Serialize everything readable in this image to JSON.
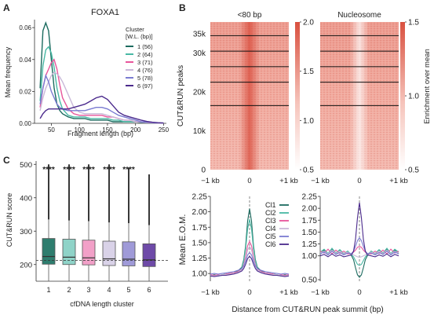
{
  "panel_labels": {
    "a": "A",
    "b": "B",
    "c": "C"
  },
  "chart_data": [
    {
      "panel": "A",
      "type": "line",
      "title": "FOXA1",
      "xlabel": "Fragment length (bp)",
      "ylabel": "Mean frequency",
      "xlim": [
        20,
        255
      ],
      "ylim": [
        0,
        0.065
      ],
      "xticks": [
        50,
        100,
        150,
        200,
        250
      ],
      "yticks": [
        0.0,
        0.02,
        0.04,
        0.06
      ],
      "ytick_labels": [
        "0.00",
        "0.02",
        "0.04",
        "0.06"
      ],
      "legend_title": "Cluster\n[W.L. (bp)]",
      "legend_title_lines": [
        "Cluster",
        "[W.L. (bp)]"
      ],
      "x": [
        30,
        35,
        40,
        45,
        50,
        55,
        60,
        65,
        70,
        80,
        90,
        100,
        110,
        120,
        130,
        140,
        150,
        160,
        170,
        180,
        190,
        200,
        210,
        220,
        230,
        240,
        250
      ],
      "series": [
        {
          "name": "1",
          "label": "(56)",
          "color": "#1b6b5f",
          "values": [
            0.022,
            0.058,
            0.063,
            0.058,
            0.04,
            0.022,
            0.012,
            0.008,
            0.006,
            0.004,
            0.003,
            0.003,
            0.003,
            0.002,
            0.002,
            0.002,
            0.002,
            0.001,
            0.001,
            0.001,
            0.001,
            0.001,
            0.0005,
            0.0003,
            0.0002,
            0.0001,
            0.0001
          ]
        },
        {
          "name": "2",
          "label": "(64)",
          "color": "#48b8a4",
          "values": [
            0.014,
            0.036,
            0.046,
            0.048,
            0.044,
            0.035,
            0.022,
            0.014,
            0.009,
            0.005,
            0.004,
            0.004,
            0.004,
            0.003,
            0.003,
            0.003,
            0.003,
            0.002,
            0.002,
            0.001,
            0.001,
            0.001,
            0.0006,
            0.0004,
            0.0003,
            0.0002,
            0.0001
          ]
        },
        {
          "name": "3",
          "label": "(71)",
          "color": "#e8559b",
          "values": [
            0.01,
            0.022,
            0.03,
            0.034,
            0.038,
            0.04,
            0.034,
            0.024,
            0.016,
            0.009,
            0.006,
            0.005,
            0.005,
            0.005,
            0.005,
            0.005,
            0.004,
            0.004,
            0.003,
            0.002,
            0.002,
            0.001,
            0.0008,
            0.0005,
            0.0003,
            0.0002,
            0.0001
          ]
        },
        {
          "name": "4",
          "label": "(76)",
          "color": "#c9b8d8",
          "values": [
            0.008,
            0.016,
            0.022,
            0.026,
            0.03,
            0.032,
            0.031,
            0.029,
            0.026,
            0.018,
            0.01,
            0.007,
            0.006,
            0.006,
            0.006,
            0.006,
            0.005,
            0.004,
            0.003,
            0.002,
            0.002,
            0.001,
            0.0009,
            0.0006,
            0.0004,
            0.0002,
            0.0001
          ]
        },
        {
          "name": "5",
          "label": "(78)",
          "color": "#7a7bd1",
          "values": [
            0.012,
            0.022,
            0.03,
            0.026,
            0.02,
            0.016,
            0.012,
            0.01,
            0.009,
            0.008,
            0.008,
            0.008,
            0.008,
            0.009,
            0.01,
            0.01,
            0.009,
            0.007,
            0.005,
            0.004,
            0.003,
            0.002,
            0.001,
            0.0008,
            0.0005,
            0.0003,
            0.0002
          ]
        },
        {
          "name": "6",
          "label": "(97)",
          "color": "#4b2a8c",
          "values": [
            0.003,
            0.006,
            0.008,
            0.009,
            0.009,
            0.009,
            0.009,
            0.009,
            0.009,
            0.009,
            0.01,
            0.011,
            0.012,
            0.014,
            0.016,
            0.017,
            0.015,
            0.011,
            0.007,
            0.005,
            0.004,
            0.003,
            0.002,
            0.0012,
            0.0007,
            0.0004,
            0.0002
          ]
        }
      ]
    },
    {
      "panel": "B",
      "type": "heatmap",
      "ylabel": "CUT&RUN peaks",
      "yticks": [
        0,
        10000,
        20000,
        30000,
        35000
      ],
      "ytick_labels": [
        "0",
        "10k",
        "20k",
        "30k",
        "35k"
      ],
      "ylim": [
        0,
        38000
      ],
      "xtick_labels": [
        "−1 kb",
        "0",
        "+1 kb"
      ],
      "cluster_boundaries": [
        16500,
        22500,
        26500,
        30500,
        34500
      ],
      "heatmaps": [
        {
          "title": "<80 bp",
          "colorbar_ticks": [
            0.5,
            1.0,
            1.5,
            2.0
          ],
          "colorbar_labels": [
            "0.5",
            "1.0",
            "1.5",
            "2.0"
          ],
          "center_signal": "high"
        },
        {
          "title": "Nucleosome",
          "colorbar_ticks": [
            0.5,
            1.0,
            1.5
          ],
          "colorbar_labels": [
            "0.5",
            "1.0",
            "1.5"
          ],
          "center_signal": "low"
        }
      ],
      "colorbar_label": "Enrichment over mean"
    },
    {
      "panel": "B-lower",
      "type": "line",
      "xlabel": "Distance from CUT&RUN peak summit (bp)",
      "ylabel": "Mean E.O.M.",
      "xtick_labels": [
        "−1 kb",
        "0",
        "+1 kb"
      ],
      "x": [
        -1000,
        -900,
        -800,
        -700,
        -600,
        -500,
        -400,
        -300,
        -200,
        -150,
        -100,
        -50,
        0,
        50,
        100,
        150,
        200,
        300,
        400,
        500,
        600,
        700,
        800,
        900,
        1000
      ],
      "legend": [
        "Cl1",
        "Cl2",
        "Cl3",
        "Cl4",
        "Cl5",
        "Cl6"
      ],
      "colors": [
        "#1b6b5f",
        "#48b8a4",
        "#e8559b",
        "#c9b8d8",
        "#7a7bd1",
        "#4b2a8c"
      ],
      "plots": [
        {
          "ylim": [
            0.9,
            2.25
          ],
          "yticks": [
            1.0,
            1.25,
            1.5,
            1.75,
            2.0,
            2.25
          ],
          "ytick_labels": [
            "1.00",
            "1.25",
            "1.50",
            "1.75",
            "2.00",
            "2.25"
          ],
          "series": [
            {
              "values": [
                0.97,
                0.98,
                0.97,
                0.98,
                0.99,
                1.0,
                1.01,
                1.04,
                1.1,
                1.22,
                1.45,
                1.85,
                2.05,
                1.85,
                1.45,
                1.22,
                1.1,
                1.04,
                1.01,
                1.0,
                0.99,
                0.98,
                0.97,
                0.98,
                0.97
              ]
            },
            {
              "values": [
                0.96,
                0.97,
                0.96,
                0.97,
                0.98,
                0.99,
                1.0,
                1.03,
                1.09,
                1.2,
                1.4,
                1.72,
                1.88,
                1.72,
                1.4,
                1.2,
                1.09,
                1.03,
                1.0,
                0.99,
                0.98,
                0.97,
                0.96,
                0.97,
                0.96
              ]
            },
            {
              "values": [
                0.98,
                0.97,
                0.98,
                0.97,
                0.99,
                1.0,
                1.01,
                1.03,
                1.07,
                1.14,
                1.28,
                1.45,
                1.52,
                1.45,
                1.28,
                1.14,
                1.07,
                1.03,
                1.01,
                1.0,
                0.99,
                0.97,
                0.98,
                0.97,
                0.98
              ]
            },
            {
              "values": [
                0.97,
                0.96,
                0.97,
                0.98,
                0.98,
                0.99,
                1.0,
                1.02,
                1.06,
                1.12,
                1.24,
                1.38,
                1.44,
                1.38,
                1.24,
                1.12,
                1.06,
                1.02,
                1.0,
                0.99,
                0.98,
                0.98,
                0.97,
                0.96,
                0.97
              ]
            },
            {
              "values": [
                0.99,
                1.0,
                0.99,
                1.0,
                1.01,
                1.02,
                1.03,
                1.05,
                1.08,
                1.12,
                1.2,
                1.3,
                1.34,
                1.3,
                1.2,
                1.12,
                1.08,
                1.05,
                1.03,
                1.02,
                1.01,
                1.0,
                0.99,
                1.0,
                0.99
              ]
            },
            {
              "values": [
                0.96,
                0.95,
                0.96,
                0.97,
                0.97,
                0.98,
                0.99,
                1.01,
                1.04,
                1.08,
                1.15,
                1.24,
                1.28,
                1.24,
                1.15,
                1.08,
                1.04,
                1.01,
                0.99,
                0.98,
                0.97,
                0.97,
                0.96,
                0.95,
                0.96
              ]
            }
          ]
        },
        {
          "ylim": [
            0.5,
            2.25
          ],
          "yticks": [
            0.5,
            1.0,
            1.25,
            1.5,
            1.75,
            2.0,
            2.25
          ],
          "ytick_labels": [
            "0.50",
            "1.00",
            "1.25",
            "1.50",
            "1.75",
            "2.00",
            "2.25"
          ],
          "series": [
            {
              "values": [
                1.05,
                1.12,
                1.02,
                1.14,
                1.03,
                1.12,
                1.02,
                1.1,
                1.0,
                0.92,
                0.75,
                0.6,
                0.55,
                0.6,
                0.75,
                0.92,
                1.0,
                1.1,
                1.02,
                1.12,
                1.03,
                1.14,
                1.02,
                1.12,
                1.05
              ]
            },
            {
              "values": [
                1.08,
                1.14,
                1.05,
                1.16,
                1.06,
                1.13,
                1.05,
                1.1,
                1.02,
                0.98,
                0.9,
                0.82,
                0.8,
                0.82,
                0.9,
                0.98,
                1.02,
                1.1,
                1.05,
                1.13,
                1.06,
                1.16,
                1.05,
                1.14,
                1.08
              ]
            },
            {
              "values": [
                1.1,
                1.06,
                1.14,
                1.04,
                1.12,
                1.05,
                1.1,
                1.04,
                1.05,
                1.08,
                1.12,
                1.18,
                1.2,
                1.18,
                1.12,
                1.08,
                1.05,
                1.04,
                1.1,
                1.05,
                1.12,
                1.04,
                1.14,
                1.06,
                1.1
              ]
            },
            {
              "values": [
                1.06,
                1.1,
                1.04,
                1.12,
                1.05,
                1.1,
                1.04,
                1.08,
                1.03,
                1.02,
                1.0,
                0.98,
                0.97,
                0.98,
                1.0,
                1.02,
                1.03,
                1.08,
                1.04,
                1.1,
                1.05,
                1.12,
                1.04,
                1.1,
                1.06
              ]
            },
            {
              "values": [
                1.04,
                1.08,
                1.02,
                1.1,
                1.03,
                1.07,
                1.02,
                1.06,
                1.05,
                1.1,
                1.2,
                1.32,
                1.38,
                1.32,
                1.2,
                1.1,
                1.05,
                1.06,
                1.02,
                1.07,
                1.03,
                1.1,
                1.02,
                1.08,
                1.04
              ]
            },
            {
              "values": [
                1.0,
                1.03,
                0.98,
                1.04,
                0.99,
                1.02,
                0.98,
                1.0,
                1.02,
                1.1,
                1.35,
                1.8,
                2.12,
                1.8,
                1.35,
                1.1,
                1.02,
                1.0,
                0.98,
                1.02,
                0.99,
                1.04,
                0.98,
                1.03,
                1.0
              ]
            }
          ]
        }
      ]
    },
    {
      "panel": "C",
      "type": "box",
      "xlabel": "cfDNA length cluster",
      "ylabel": "CUT&RUN score",
      "categories": [
        "1",
        "2",
        "3",
        "4",
        "5",
        "6"
      ],
      "ylim": [
        150,
        510
      ],
      "yticks": [
        200,
        300,
        400,
        500
      ],
      "significance": [
        "****",
        "****",
        "****",
        "****",
        "****",
        ""
      ],
      "reference_line": 212,
      "colors": [
        "#2e7d6e",
        "#8fd3c8",
        "#f2a0c8",
        "#d9d2e8",
        "#9f9ad8",
        "#6e4aa8"
      ],
      "boxes": [
        {
          "q1": 201,
          "median": 224,
          "q3": 278,
          "whisker_low": 150,
          "whisker_high": 335,
          "outliers_top": 500
        },
        {
          "q1": 200,
          "median": 222,
          "q3": 276,
          "whisker_low": 150,
          "whisker_high": 332,
          "outliers_top": 500
        },
        {
          "q1": 199,
          "median": 220,
          "q3": 273,
          "whisker_low": 150,
          "whisker_high": 330,
          "outliers_top": 500
        },
        {
          "q1": 197,
          "median": 217,
          "q3": 270,
          "whisker_low": 150,
          "whisker_high": 326,
          "outliers_top": 500
        },
        {
          "q1": 196,
          "median": 216,
          "q3": 268,
          "whisker_low": 150,
          "whisker_high": 324,
          "outliers_top": 490
        },
        {
          "q1": 194,
          "median": 214,
          "q3": 262,
          "whisker_low": 150,
          "whisker_high": 318,
          "outliers_top": 470
        }
      ]
    }
  ]
}
